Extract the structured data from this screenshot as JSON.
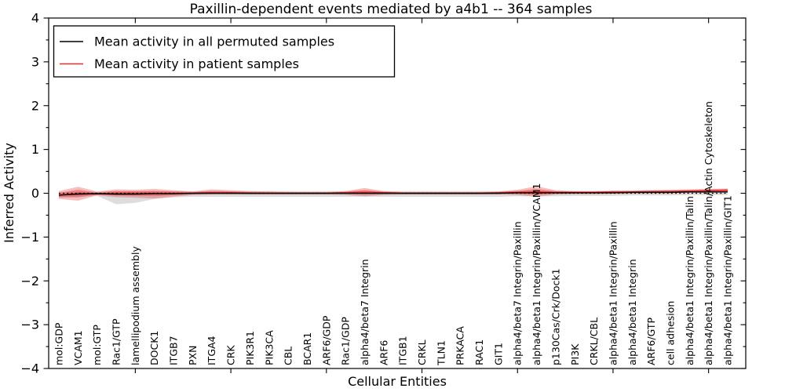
{
  "title": "Paxillin-dependent events mediated by a4b1 -- 364 samples",
  "axes": {
    "xlabel": "Cellular Entities",
    "ylabel": "Inferred Activity",
    "yticks": [
      -4,
      -3,
      -2,
      -1,
      0,
      1,
      2,
      3,
      4
    ],
    "ylim": [
      -4,
      4
    ]
  },
  "legend": {
    "entries": [
      {
        "label": "Mean activity in all permuted samples",
        "color": "#000000"
      },
      {
        "label": "Mean activity in patient samples",
        "color": "#e53030"
      }
    ],
    "position": "upper left"
  },
  "chart_data": {
    "type": "line",
    "title": "Paxillin-dependent events mediated by a4b1 -- 364 samples",
    "xlabel": "Cellular Entities",
    "ylabel": "Inferred Activity",
    "ylim": [
      -4,
      4
    ],
    "yticks": [
      -4,
      -3,
      -2,
      -1,
      0,
      1,
      2,
      3,
      4
    ],
    "grid": false,
    "legend_position": "upper left",
    "zero_reference_line": 0,
    "categories": [
      "mol:GDP",
      "VCAM1",
      "mol:GTP",
      "Rac1/GTP",
      "lamellipodium assembly",
      "DOCK1",
      "ITGB7",
      "PXN",
      "ITGA4",
      "CRK",
      "PIK3R1",
      "PIK3CA",
      "CBL",
      "BCAR1",
      "ARF6/GDP",
      "Rac1/GDP",
      "alpha4/beta7 Integrin",
      "ARF6",
      "ITGB1",
      "CRKL",
      "TLN1",
      "PRKACA",
      "RAC1",
      "GIT1",
      "alpha4/beta7 Integrin/Paxillin",
      "alpha4/beta1 Integrin/Paxillin/VCAM1",
      "p130Cas/Crk/Dock1",
      "PI3K",
      "CRKL/CBL",
      "alpha4/beta1 Integrin/Paxillin",
      "alpha4/beta1 Integrin",
      "ARF6/GTP",
      "cell adhesion",
      "alpha4/beta1 Integrin/Paxillin/Talin",
      "alpha4/beta1 Integrin/Paxillin/Talin/Actin Cytoskeleton",
      "alpha4/beta1 Integrin/Paxillin/GIT1"
    ],
    "series": [
      {
        "name": "Mean activity in all permuted samples",
        "color": "#000000",
        "values": [
          -0.04,
          -0.02,
          -0.01,
          -0.02,
          -0.02,
          -0.01,
          -0.01,
          0,
          0,
          0,
          0,
          0,
          0,
          0,
          0,
          0,
          0,
          0,
          0,
          0,
          0,
          0,
          0,
          0,
          0.01,
          0.01,
          0.01,
          0.01,
          0.01,
          0.01,
          0.02,
          0.02,
          0.02,
          0.03,
          0.03,
          0.03
        ]
      },
      {
        "name": "Mean activity in patient samples",
        "color": "#e53030",
        "values": [
          -0.05,
          0,
          -0.01,
          0,
          0,
          0,
          0,
          0,
          0.01,
          0.01,
          0,
          0,
          0,
          0,
          0,
          0.01,
          0.02,
          0.01,
          0,
          0,
          0,
          0,
          0,
          0.01,
          0.02,
          0.03,
          0.02,
          0.02,
          0.02,
          0.03,
          0.03,
          0.04,
          0.04,
          0.05,
          0.06,
          0.07
        ]
      }
    ],
    "bands": [
      {
        "name": "patient samples range",
        "color": "#e53030",
        "lower": [
          -0.13,
          -0.17,
          -0.05,
          -0.09,
          -0.1,
          -0.12,
          -0.08,
          -0.04,
          -0.03,
          -0.03,
          -0.03,
          -0.03,
          -0.03,
          -0.03,
          -0.03,
          -0.04,
          -0.07,
          -0.04,
          -0.03,
          -0.03,
          -0.03,
          -0.03,
          -0.03,
          -0.03,
          -0.04,
          -0.08,
          -0.03,
          -0.02,
          -0.02,
          -0.01,
          -0.01,
          0,
          0,
          0.01,
          0.01,
          0.02
        ],
        "upper": [
          0.05,
          0.15,
          0.04,
          0.09,
          0.08,
          0.1,
          0.07,
          0.04,
          0.09,
          0.07,
          0.05,
          0.04,
          0.03,
          0.03,
          0.03,
          0.05,
          0.12,
          0.05,
          0.03,
          0.03,
          0.03,
          0.03,
          0.03,
          0.04,
          0.08,
          0.16,
          0.07,
          0.05,
          0.05,
          0.06,
          0.06,
          0.07,
          0.08,
          0.09,
          0.1,
          0.11
        ]
      },
      {
        "name": "permuted samples range",
        "color": "#999999",
        "lower": [
          -0.09,
          -0.08,
          -0.06,
          -0.25,
          -0.22,
          -0.13,
          -0.09,
          -0.08,
          -0.08,
          -0.08,
          -0.08,
          -0.08,
          -0.08,
          -0.08,
          -0.08,
          -0.08,
          -0.08,
          -0.08,
          -0.08,
          -0.08,
          -0.08,
          -0.08,
          -0.08,
          -0.08,
          -0.07,
          -0.07,
          -0.07,
          -0.06,
          -0.06,
          -0.06,
          -0.05,
          -0.05,
          -0.05,
          -0.04,
          -0.04,
          -0.04
        ],
        "upper": [
          0.03,
          0.04,
          0.03,
          0.05,
          0.05,
          0.05,
          0.05,
          0.05,
          0.05,
          0.05,
          0.05,
          0.05,
          0.05,
          0.05,
          0.05,
          0.05,
          0.05,
          0.05,
          0.05,
          0.05,
          0.05,
          0.05,
          0.05,
          0.05,
          0.05,
          0.05,
          0.05,
          0.05,
          0.05,
          0.05,
          0.05,
          0.05,
          0.05,
          0.05,
          0.05,
          0.06
        ]
      }
    ]
  }
}
